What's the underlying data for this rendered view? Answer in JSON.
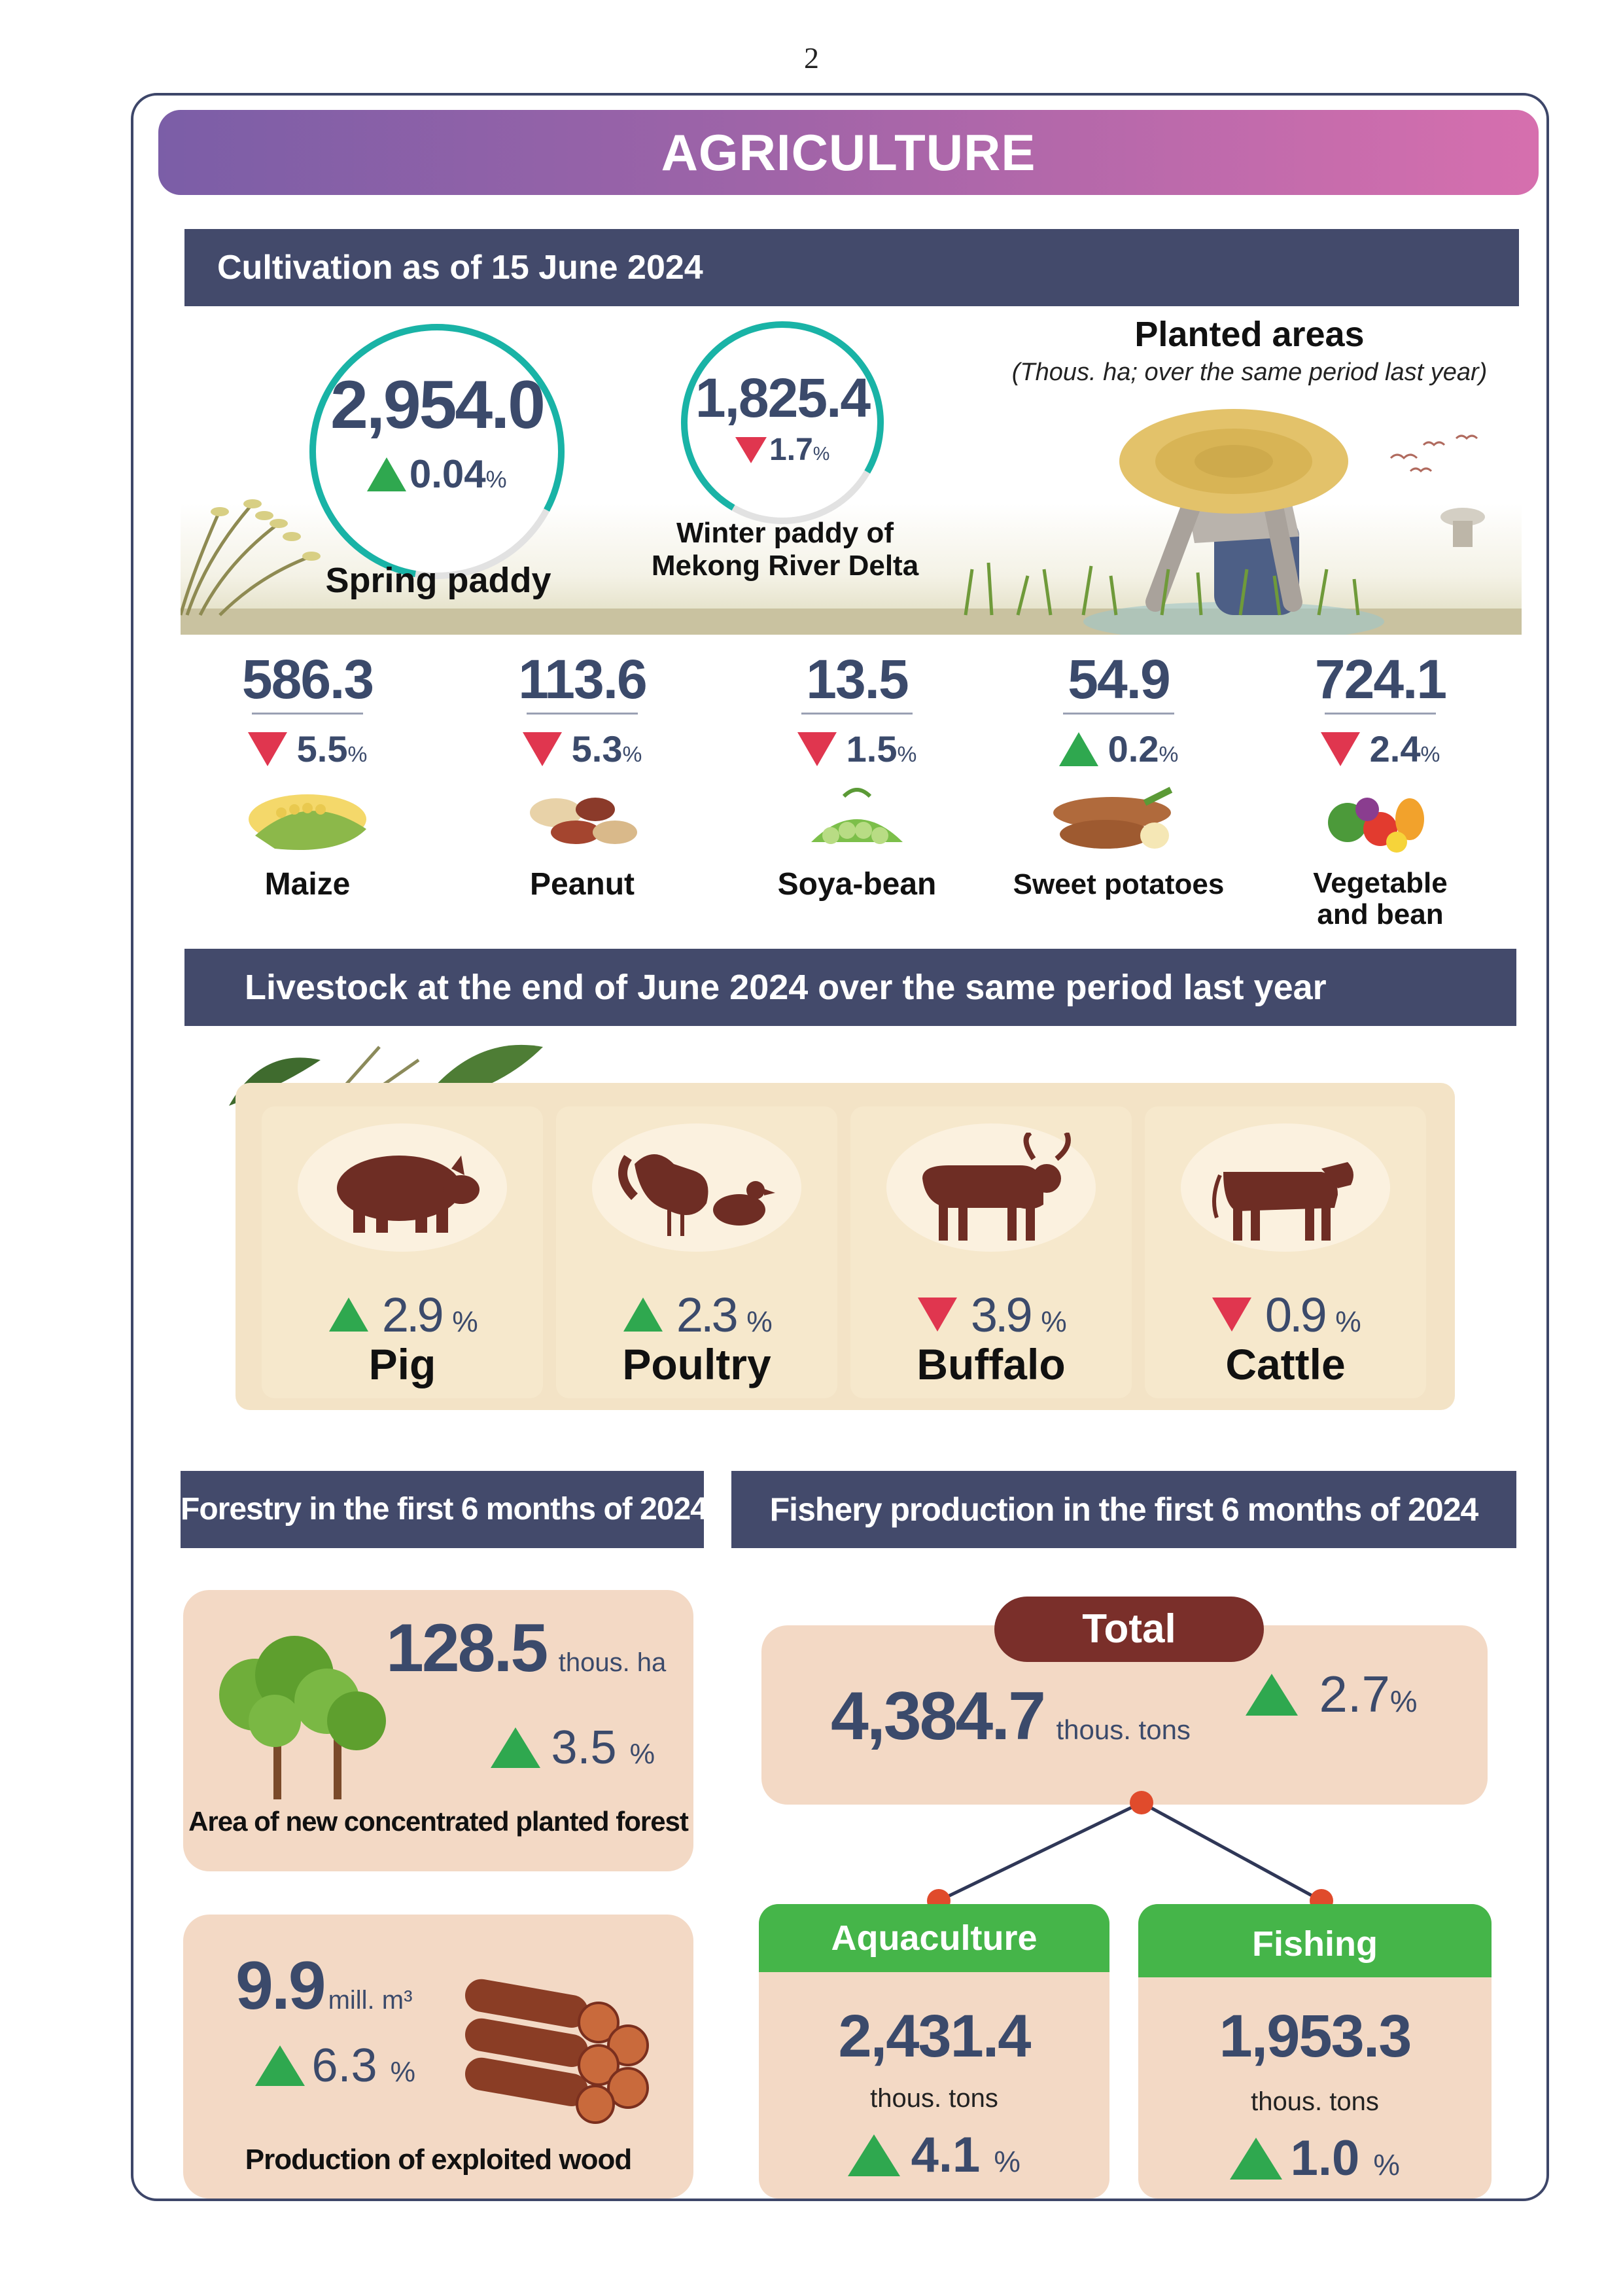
{
  "page_number": "2",
  "title": "AGRICULTURE",
  "cultivation": {
    "heading": "Cultivation as of 15 June 2024",
    "planted_title": "Planted areas",
    "planted_note": "(Thous. ha; over the same period last year)",
    "spring": {
      "value": "2,954.0",
      "change": "0.04",
      "unit": "%",
      "direction": "up",
      "label": "Spring paddy",
      "ring_fraction": 0.8
    },
    "winter": {
      "value": "1,825.4",
      "change": "1.7",
      "unit": "%",
      "direction": "down",
      "label_line1": "Winter paddy of",
      "label_line2": "Mekong River Delta",
      "ring_fraction": 0.75
    },
    "crops": [
      {
        "value": "586.3",
        "change": "5.5",
        "unit": "%",
        "direction": "down",
        "label": "Maize",
        "icon": "maize-icon"
      },
      {
        "value": "113.6",
        "change": "5.3",
        "unit": "%",
        "direction": "down",
        "label": "Peanut",
        "icon": "peanut-icon"
      },
      {
        "value": "13.5",
        "change": "1.5",
        "unit": "%",
        "direction": "down",
        "label": "Soya-bean",
        "icon": "soybean-icon"
      },
      {
        "value": "54.9",
        "change": "0.2",
        "unit": "%",
        "direction": "up",
        "label": "Sweet potatoes",
        "icon": "sweet-potato-icon"
      },
      {
        "value": "724.1",
        "change": "2.4",
        "unit": "%",
        "direction": "down",
        "label_line1": "Vegetable",
        "label_line2": "and bean",
        "icon": "vegetables-icon"
      }
    ]
  },
  "livestock": {
    "heading": "Livestock at the end of June 2024 over the same period last year",
    "items": [
      {
        "change": "2.9",
        "unit": "%",
        "direction": "up",
        "label": "Pig",
        "icon": "pig-icon"
      },
      {
        "change": "2.3",
        "unit": "%",
        "direction": "up",
        "label": "Poultry",
        "icon": "poultry-icon"
      },
      {
        "change": "3.9",
        "unit": "%",
        "direction": "down",
        "label": "Buffalo",
        "icon": "buffalo-icon"
      },
      {
        "change": "0.9",
        "unit": "%",
        "direction": "down",
        "label": "Cattle",
        "icon": "cattle-icon"
      }
    ]
  },
  "forestry": {
    "heading": "Forestry in the first 6 months of 2024",
    "area": {
      "value": "128.5",
      "unit": "thous. ha",
      "change": "3.5",
      "pct": "%",
      "direction": "up",
      "label": "Area of new concentrated planted forest"
    },
    "wood": {
      "value": "9.9",
      "unit": "mill. m³",
      "change": "6.3",
      "pct": "%",
      "direction": "up",
      "label": "Production of exploited wood"
    }
  },
  "fishery": {
    "heading": "Fishery production in the first 6 months of 2024",
    "total": {
      "label": "Total",
      "value": "4,384.7",
      "unit": "thous. tons",
      "change": "2.7",
      "pct": "%",
      "direction": "up"
    },
    "aquaculture": {
      "label": "Aquaculture",
      "value": "2,431.4",
      "unit": "thous. tons",
      "change": "4.1",
      "pct": "%",
      "direction": "up"
    },
    "fishing": {
      "label": "Fishing",
      "value": "1,953.3",
      "unit": "thous. tons",
      "change": "1.0",
      "pct": "%",
      "direction": "up"
    }
  },
  "colors": {
    "navy": "#434a6b",
    "up": "#2fa84f",
    "down": "#e0364f",
    "teal_ring": "#19b3a6",
    "brown": "#7a2f2a",
    "green": "#45b549",
    "peach": "#f3d9c5"
  }
}
